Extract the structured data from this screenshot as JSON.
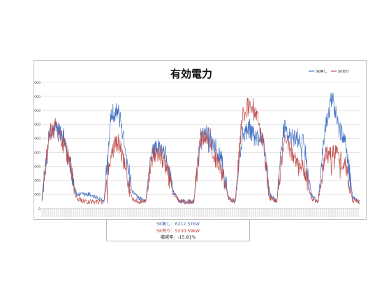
{
  "chart_data": {
    "type": "line",
    "title": "有効電力",
    "ylim": [
      0,
      18000
    ],
    "y_ticks": [
      "0",
      "2000",
      "4000",
      "6000",
      "8000",
      "10000",
      "12000",
      "14000",
      "16000",
      "18000"
    ],
    "grid": true,
    "legend_position": "top-right",
    "series": [
      {
        "name": "SK無し",
        "color": "#4472c4",
        "profile": [
          1500,
          10000,
          11500,
          10500,
          7000,
          2000,
          2000,
          2000,
          1500,
          1000,
          13500,
          14000,
          9500,
          2500,
          1500,
          1000,
          8500,
          8500,
          7500,
          2500,
          1000,
          1000,
          1000,
          10500,
          11000,
          9000,
          7000,
          1500,
          1000,
          10500,
          11500,
          10000,
          10500,
          2000,
          1000,
          11500,
          10000,
          10000,
          9000,
          2000,
          1000,
          11000,
          16000,
          11500,
          9500,
          1500,
          1000
        ]
      },
      {
        "name": "SK有り",
        "color": "#c0504d",
        "profile": [
          1000,
          10500,
          12000,
          9500,
          6500,
          1500,
          1000,
          1000,
          1000,
          1000,
          8000,
          9500,
          6500,
          1500,
          1000,
          1000,
          7500,
          8000,
          6000,
          2000,
          1000,
          1000,
          1000,
          10000,
          10500,
          7500,
          5500,
          1500,
          1000,
          13000,
          15000,
          14000,
          9000,
          1500,
          1000,
          9500,
          8500,
          6000,
          5500,
          1500,
          1000,
          7500,
          8000,
          7500,
          6000,
          1200,
          1000
        ]
      }
    ]
  },
  "stats": {
    "line1": "SK無し：6212.57kW",
    "line2": "SK有り：5230.59kW",
    "line3": "増減率：-15.81%"
  }
}
